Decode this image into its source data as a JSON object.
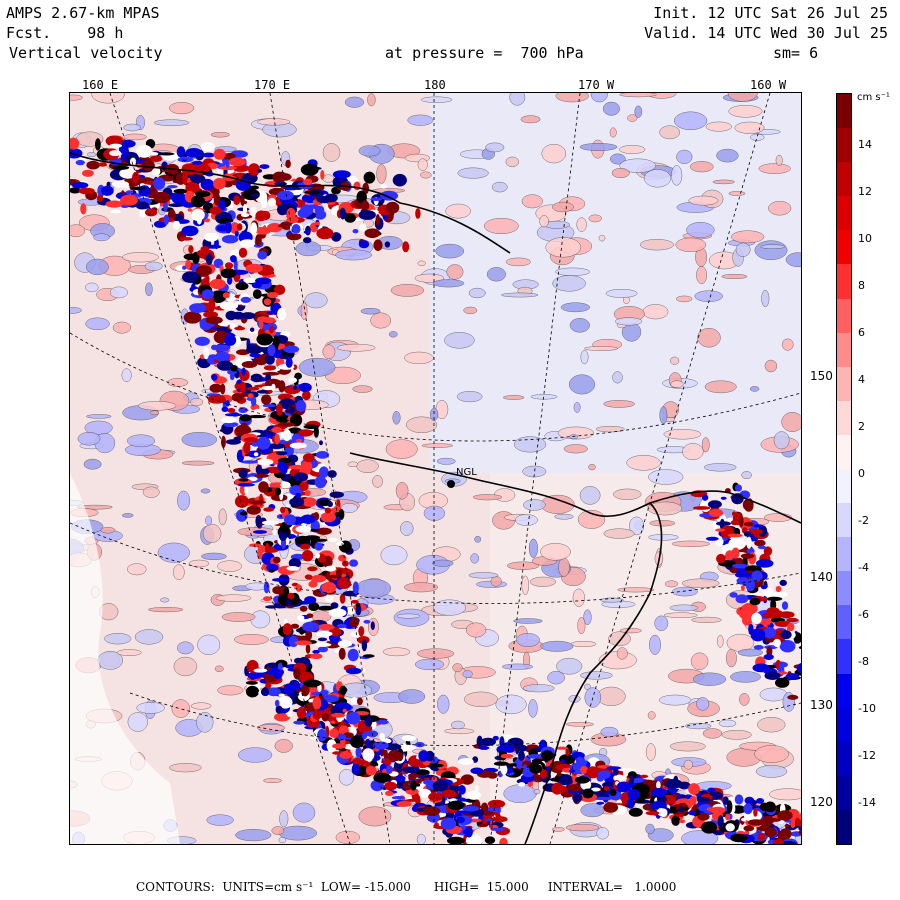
{
  "header": {
    "model": "AMPS 2.67-km MPAS",
    "init": "Init. 12 UTC Sat 26 Jul 25",
    "fcst": "Fcst.    98 h",
    "valid": "Valid. 14 UTC Wed 30 Jul 25",
    "field": "Vertical velocity",
    "level": "at pressure =  700 hPa",
    "smooth": "sm= 6"
  },
  "longitude_labels": [
    "160 E",
    "170 E",
    "180",
    "170 W",
    "160 W"
  ],
  "latitude_labels": [
    "150 W",
    "140 W",
    "130 W",
    "120 W"
  ],
  "station_label": "NGL",
  "colorbar": {
    "units": "cm s⁻¹",
    "labels": [
      "14",
      "12",
      "10",
      "8",
      "6",
      "4",
      "2",
      "0",
      "-2",
      "-4",
      "-6",
      "-8",
      "-10",
      "-12",
      "-14"
    ],
    "colors": [
      "#7a0000",
      "#a00000",
      "#c00000",
      "#dc0000",
      "#f00000",
      "#ff3030",
      "#ff6060",
      "#ff8c8c",
      "#ffb4b4",
      "#ffd8d8",
      "#fff2f2",
      "#f2f2ff",
      "#d8d8ff",
      "#b4b4ff",
      "#8c8cff",
      "#6060ff",
      "#3030ff",
      "#0000f0",
      "#0000dc",
      "#0000c0",
      "#0000a0",
      "#00007a"
    ]
  },
  "footer": {
    "contours": "CONTOURS:  UNITS=cm s⁻¹  LOW= -15.000      HIGH=  15.000     INTERVAL=   1.0000"
  }
}
